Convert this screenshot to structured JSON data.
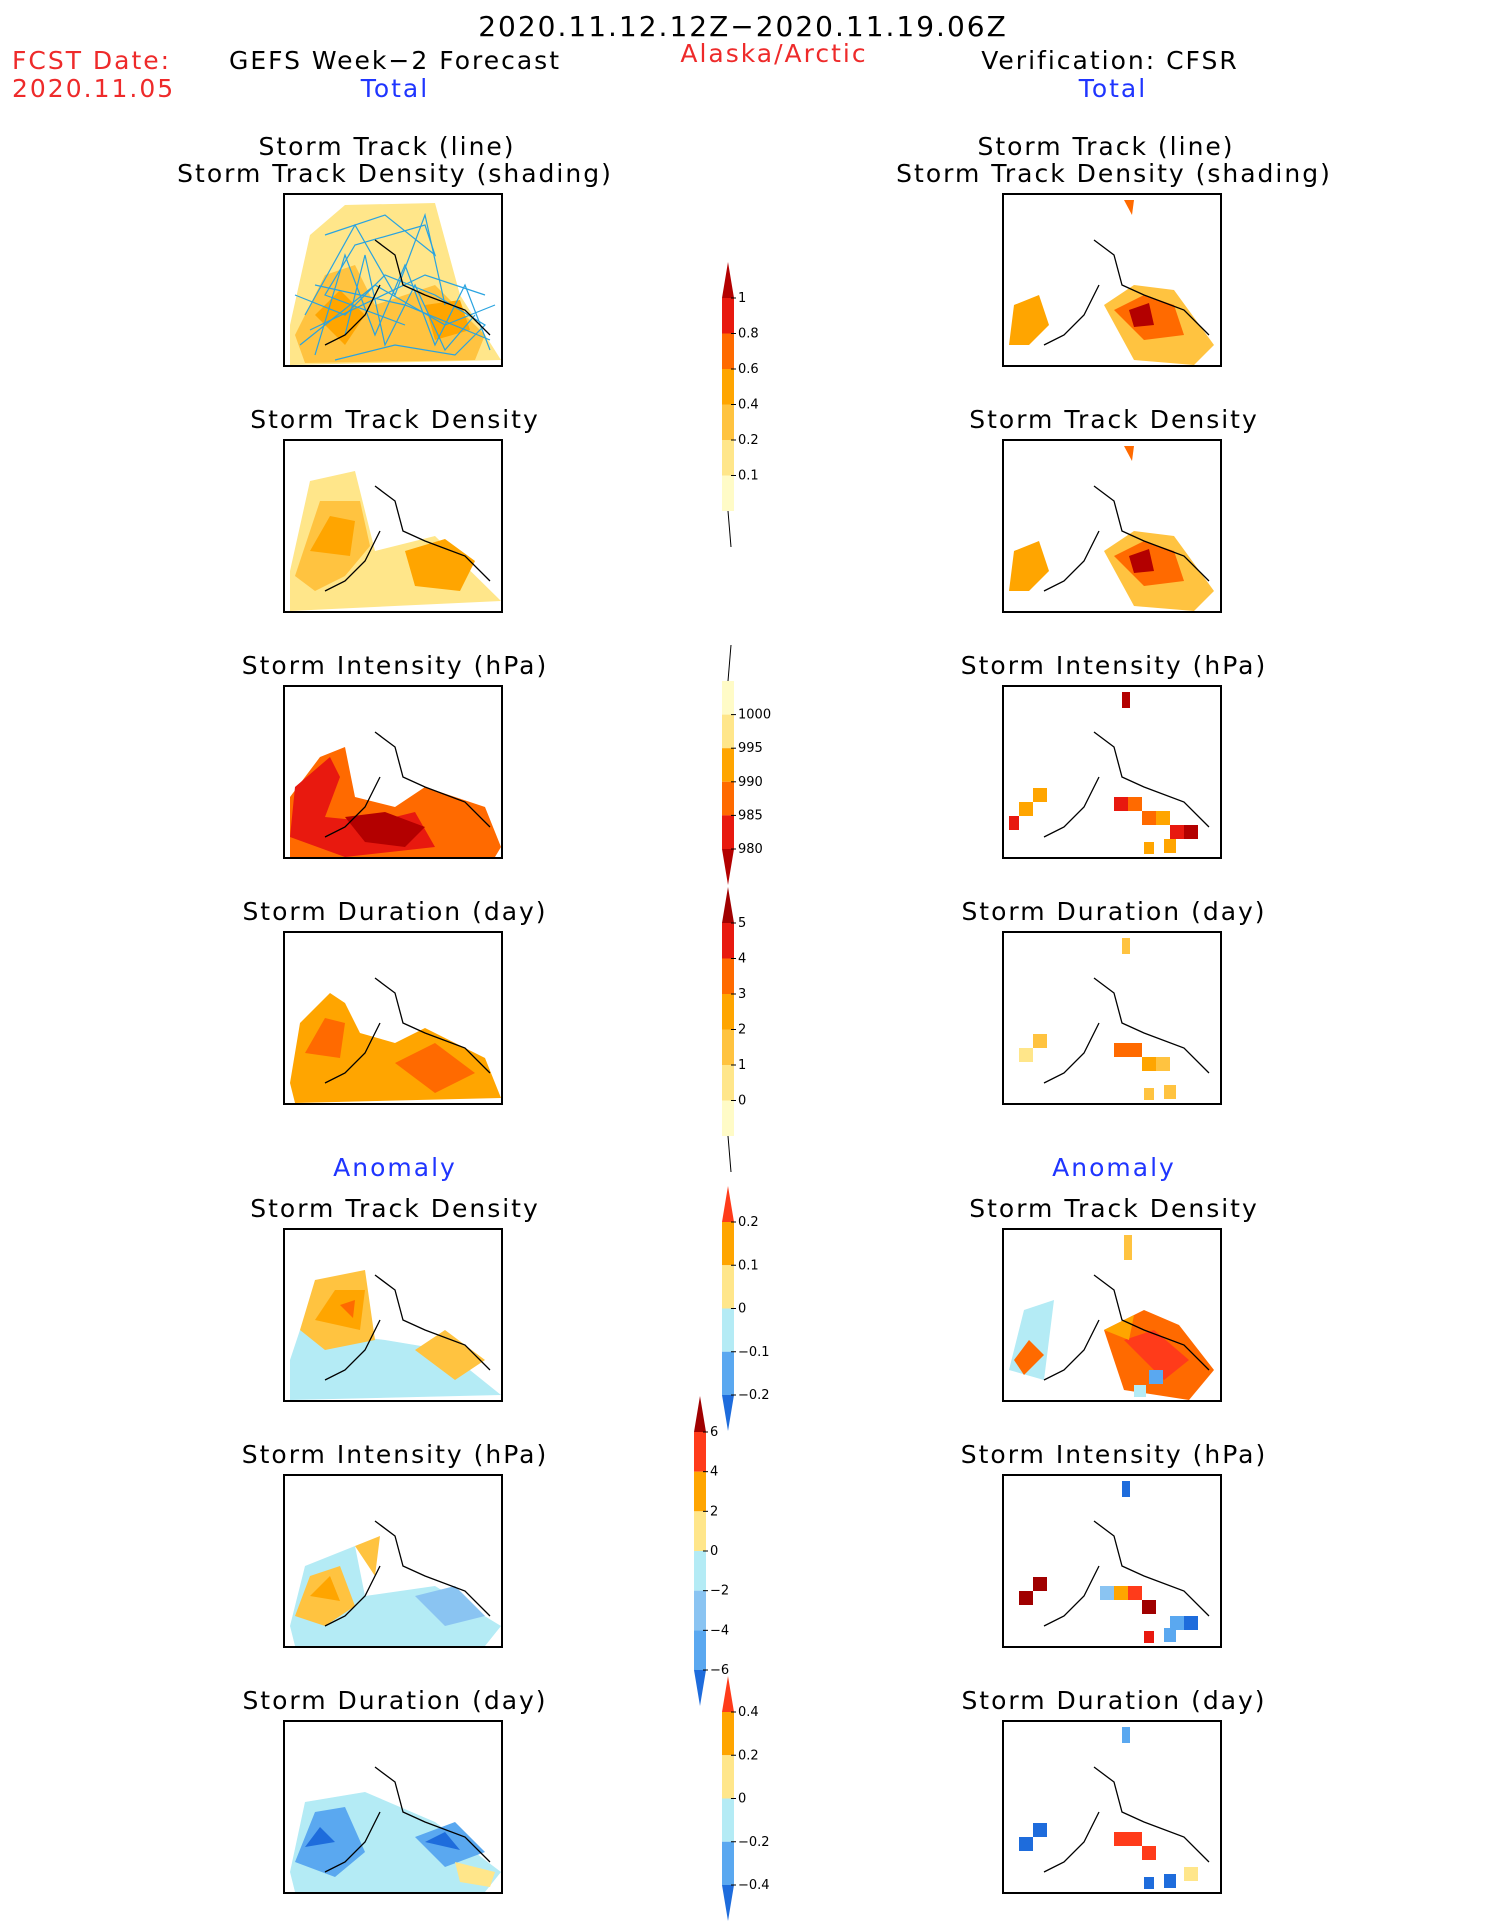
{
  "header": {
    "period": "2020.11.12.12Z−2020.11.19.06Z",
    "fcst_label": "FCST Date:",
    "fcst_date": "2020.11.05",
    "left_title": "GEFS Week−2 Forecast",
    "region": "Alaska/Arctic",
    "right_title": "Verification: CFSR",
    "left_total": "Total",
    "right_total": "Total"
  },
  "section_labels": {
    "anomaly_left": "Anomaly",
    "anomaly_right": "Anomaly"
  },
  "panel_titles": {
    "track_line": "Storm Track (line)",
    "track_density_shading": "Storm Track Density (shading)",
    "track_density": "Storm Track Density",
    "intensity": "Storm Intensity (hPa)",
    "duration": "Storm Duration (day)"
  },
  "colorbars": {
    "density": {
      "labels": [
        "1",
        "0.8",
        "0.6",
        "0.4",
        "0.2",
        "0.1"
      ],
      "colors": [
        "#b30000",
        "#e8190f",
        "#ff6a00",
        "#ffa500",
        "#ffc340",
        "#ffe68a",
        "#fffbc7"
      ]
    },
    "intensity": {
      "labels": [
        "1000",
        "995",
        "990",
        "985",
        "980"
      ],
      "colors": [
        "#fffbc7",
        "#ffe68a",
        "#ffa500",
        "#ff6a00",
        "#e8190f",
        "#b30000"
      ]
    },
    "duration": {
      "labels": [
        "5",
        "4",
        "3",
        "2",
        "1",
        "0"
      ],
      "colors": [
        "#a00000",
        "#e8190f",
        "#ff6a00",
        "#ffa500",
        "#ffc340",
        "#ffe68a",
        "#fffbc7"
      ]
    },
    "density_anom": {
      "labels": [
        "0.2",
        "0.1",
        "0",
        "−0.1",
        "−0.2"
      ],
      "colors": [
        "#ff3b1a",
        "#ffa500",
        "#ffe68a",
        "#b4ebf5",
        "#5aa8f0",
        "#1e6cdc"
      ]
    },
    "intensity_anom": {
      "labels": [
        "6",
        "4",
        "2",
        "0",
        "−2",
        "−4",
        "−6"
      ],
      "colors": [
        "#a00000",
        "#ff3b1a",
        "#ffa500",
        "#ffe68a",
        "#b4ebf5",
        "#8ac4f2",
        "#5aa8f0",
        "#1e6cdc"
      ]
    },
    "duration_anom": {
      "labels": [
        "0.4",
        "0.2",
        "0",
        "−0.2",
        "−0.4"
      ],
      "colors": [
        "#ff3b1a",
        "#ffa500",
        "#ffe68a",
        "#b4ebf5",
        "#5aa8f0",
        "#1e6cdc"
      ]
    }
  }
}
